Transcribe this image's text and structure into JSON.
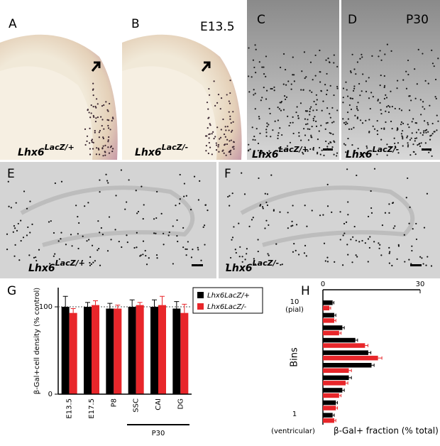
{
  "panel_labels": [
    "A",
    "B",
    "C",
    "D",
    "E",
    "F",
    "G",
    "H"
  ],
  "stage_labels": [
    "E13.5",
    "P30"
  ],
  "genotype_labels": [
    {
      "gene": "Lhx6",
      "allele": "LacZ/+"
    },
    {
      "gene": "Lhx6",
      "allele": "LacZ/-"
    },
    {
      "gene": "Lhx6",
      "allele": "LacZ/+"
    },
    {
      "gene": "Lhx6",
      "allele": "LacZ/-"
    },
    {
      "gene": "Lhx6",
      "allele": "LacZ/+"
    },
    {
      "gene": "Lhx6",
      "allele": "LacZ/-"
    }
  ],
  "chart_data": [
    {
      "type": "bar",
      "y_label": "β-Gal+cell density (% control)",
      "categories": [
        "E13.5",
        "E17.5",
        "P8",
        "SSC",
        "CAI",
        "DG"
      ],
      "group_label": "P30",
      "series": [
        {
          "name": "Lhx6LacZ/+",
          "color": "#000000",
          "values": [
            100,
            100,
            98,
            100,
            100,
            98
          ],
          "errors": [
            12,
            5,
            6,
            8,
            8,
            8
          ]
        },
        {
          "name": "Lhx6LacZ/-",
          "color": "#e8262a",
          "values": [
            93,
            102,
            98,
            102,
            102,
            93
          ],
          "errors": [
            5,
            5,
            4,
            3,
            10,
            10
          ]
        }
      ],
      "ylim": [
        0,
        122
      ],
      "yticks": [
        0,
        100
      ],
      "reference_line": 100
    },
    {
      "type": "barh",
      "y_label": "Bins",
      "x_label": "β-Gal+ fraction (% total)",
      "categories": [
        "1",
        null,
        null,
        null,
        null,
        null,
        null,
        null,
        null,
        "10"
      ],
      "top_note": "(pial)",
      "bottom_note": "(ventricular)",
      "series": [
        {
          "name": "Lhx6LacZ/+",
          "color": "#000000",
          "values": [
            3,
            4,
            6,
            8,
            15,
            14,
            10,
            6,
            3.5,
            3
          ],
          "errors": [
            0.5,
            0.5,
            0.6,
            0.8,
            0.8,
            0.8,
            0.7,
            0.6,
            0.5,
            0.4
          ]
        },
        {
          "name": "Lhx6LacZ/-",
          "color": "#e8262a",
          "values": [
            3.5,
            4,
            5,
            7,
            8,
            17,
            13,
            5,
            3.5,
            2
          ],
          "errors": [
            0.5,
            0.5,
            0.6,
            0.7,
            0.8,
            1.2,
            0.9,
            0.6,
            0.5,
            0.4
          ]
        }
      ],
      "xlim": [
        0,
        30
      ],
      "xticks": [
        0,
        30
      ]
    }
  ]
}
